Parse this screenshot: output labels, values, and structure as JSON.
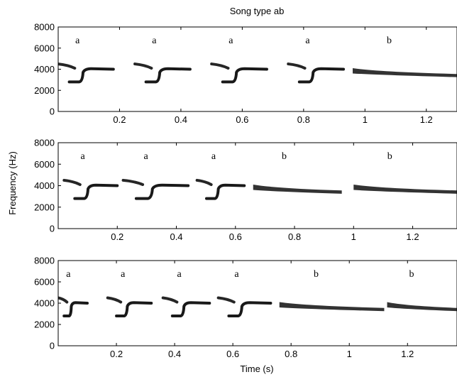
{
  "title": "Song type ab",
  "xlabel": "Time (s)",
  "ylabel": "Frequency (Hz)",
  "colors": {
    "ink": "#000000",
    "background": "#ffffff"
  },
  "chart_data": [
    {
      "type": "spectrogram",
      "xlim": [
        0.0,
        1.3
      ],
      "ylim": [
        0,
        8000
      ],
      "xticks": [
        0.2,
        0.4,
        0.6,
        0.8,
        1,
        1.2
      ],
      "xtick_labels": [
        "0.2",
        "0.4",
        "0.6",
        "0.8",
        "1",
        "1.2"
      ],
      "yticks": [
        0,
        2000,
        4000,
        6000,
        8000
      ],
      "ytick_labels": [
        "0",
        "2000",
        "4000",
        "6000",
        "8000"
      ],
      "segments": [
        {
          "label": "a",
          "kind": "a",
          "start": 0.0,
          "end": 0.18
        },
        {
          "label": "a",
          "kind": "a",
          "start": 0.25,
          "end": 0.43
        },
        {
          "label": "a",
          "kind": "a",
          "start": 0.5,
          "end": 0.68
        },
        {
          "label": "a",
          "kind": "a",
          "start": 0.75,
          "end": 0.93
        },
        {
          "label": "b",
          "kind": "b",
          "start": 0.96,
          "end": 1.3
        }
      ]
    },
    {
      "type": "spectrogram",
      "xlim": [
        0.0,
        1.35
      ],
      "ylim": [
        0,
        8000
      ],
      "xticks": [
        0.2,
        0.4,
        0.6,
        0.8,
        1,
        1.2
      ],
      "xtick_labels": [
        "0.2",
        "0.4",
        "0.6",
        "0.8",
        "1",
        "1.2"
      ],
      "yticks": [
        0,
        2000,
        4000,
        6000,
        8000
      ],
      "ytick_labels": [
        "0",
        "2000",
        "4000",
        "6000",
        "8000"
      ],
      "segments": [
        {
          "label": "a",
          "kind": "a",
          "start": 0.02,
          "end": 0.2
        },
        {
          "label": "a",
          "kind": "a",
          "start": 0.22,
          "end": 0.44
        },
        {
          "label": "a",
          "kind": "a",
          "start": 0.47,
          "end": 0.63
        },
        {
          "label": "b",
          "kind": "b",
          "start": 0.66,
          "end": 0.96
        },
        {
          "label": "b",
          "kind": "b",
          "start": 1.0,
          "end": 1.35
        }
      ]
    },
    {
      "type": "spectrogram",
      "xlim": [
        0.0,
        1.37
      ],
      "ylim": [
        0,
        8000
      ],
      "xticks": [
        0.2,
        0.4,
        0.6,
        0.8,
        1,
        1.2
      ],
      "xtick_labels": [
        "0.2",
        "0.4",
        "0.6",
        "0.8",
        "1",
        "1.2"
      ],
      "yticks": [
        0,
        2000,
        4000,
        6000,
        8000
      ],
      "ytick_labels": [
        "0",
        "2000",
        "4000",
        "6000",
        "8000"
      ],
      "segments": [
        {
          "label": "a",
          "kind": "a",
          "start": 0.0,
          "end": 0.1
        },
        {
          "label": "a",
          "kind": "a",
          "start": 0.17,
          "end": 0.32
        },
        {
          "label": "a",
          "kind": "a",
          "start": 0.36,
          "end": 0.52
        },
        {
          "label": "a",
          "kind": "a",
          "start": 0.55,
          "end": 0.73
        },
        {
          "label": "b",
          "kind": "b",
          "start": 0.76,
          "end": 1.12
        },
        {
          "label": "b",
          "kind": "b",
          "start": 1.13,
          "end": 1.37
        }
      ]
    }
  ]
}
